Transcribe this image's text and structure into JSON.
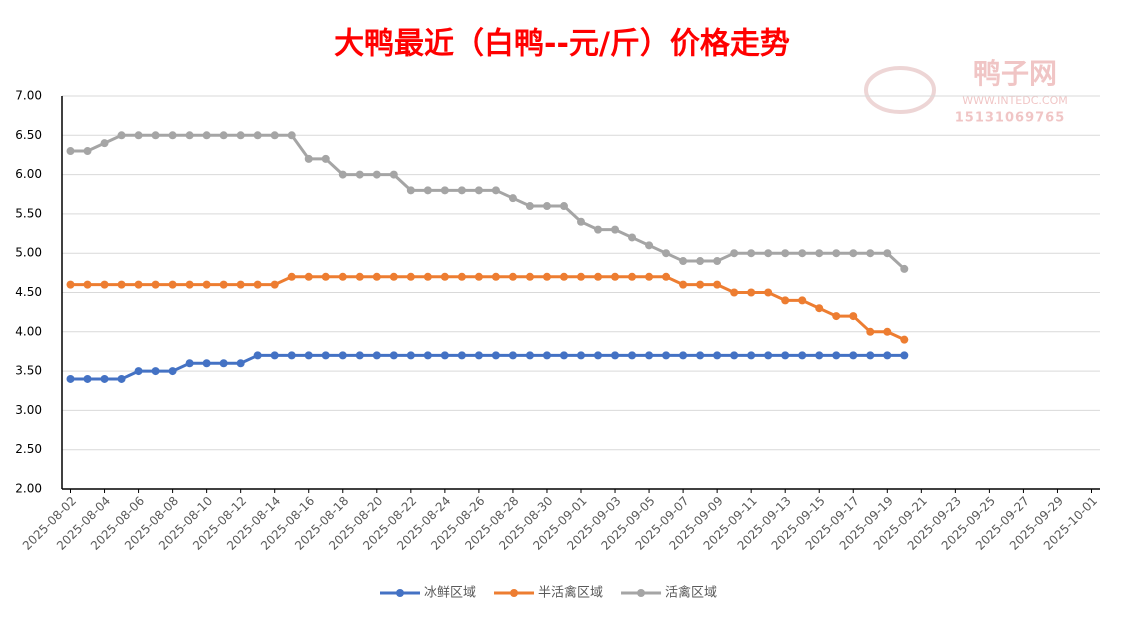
{
  "chart_data": {
    "type": "line",
    "title": "大鸭最近（白鸭--元/斤）价格走势",
    "watermark": {
      "name": "鸭子网",
      "site": "WWW.INTEDC.COM",
      "phone": "15131069765"
    },
    "categories": [
      "2025-08-02",
      null,
      "2025-08-04",
      null,
      "2025-08-06",
      null,
      "2025-08-08",
      null,
      "2025-08-10",
      null,
      "2025-08-12",
      null,
      "2025-08-14",
      null,
      "2025-08-16",
      null,
      "2025-08-18",
      null,
      "2025-08-20",
      null,
      "2025-08-22",
      null,
      "2025-08-24",
      null,
      "2025-08-26",
      null,
      "2025-08-28",
      null,
      "2025-08-30",
      null,
      "2025-09-01",
      null,
      "2025-09-03",
      null,
      "2025-09-05",
      null,
      "2025-09-07",
      null,
      "2025-09-09",
      null,
      "2025-09-11",
      null,
      "2025-09-13",
      null,
      "2025-09-15",
      null,
      "2025-09-17",
      null,
      "2025-09-19",
      null,
      "2025-09-21",
      null,
      "2025-09-23",
      null,
      "2025-09-25",
      null,
      "2025-09-27",
      null,
      "2025-09-29",
      null,
      "2025-10-01"
    ],
    "series": [
      {
        "name": "冰鲜区域",
        "color": "#4472c4",
        "values": [
          3.4,
          3.4,
          3.4,
          3.4,
          3.5,
          3.5,
          3.5,
          3.6,
          3.6,
          3.6,
          3.6,
          3.7,
          3.7,
          3.7,
          3.7,
          3.7,
          3.7,
          3.7,
          3.7,
          3.7,
          3.7,
          3.7,
          3.7,
          3.7,
          3.7,
          3.7,
          3.7,
          3.7,
          3.7,
          3.7,
          3.7,
          3.7,
          3.7,
          3.7,
          3.7,
          3.7,
          3.7,
          3.7,
          3.7,
          3.7,
          3.7,
          3.7,
          3.7,
          3.7,
          3.7,
          3.7,
          3.7,
          3.7,
          3.7,
          3.7,
          null,
          null,
          null,
          null,
          null,
          null,
          null,
          null,
          null,
          null,
          null
        ]
      },
      {
        "name": "半活禽区域",
        "color": "#ed7d31",
        "values": [
          4.6,
          4.6,
          4.6,
          4.6,
          4.6,
          4.6,
          4.6,
          4.6,
          4.6,
          4.6,
          4.6,
          4.6,
          4.6,
          4.7,
          4.7,
          4.7,
          4.7,
          4.7,
          4.7,
          4.7,
          4.7,
          4.7,
          4.7,
          4.7,
          4.7,
          4.7,
          4.7,
          4.7,
          4.7,
          4.7,
          4.7,
          4.7,
          4.7,
          4.7,
          4.7,
          4.7,
          4.6,
          4.6,
          4.6,
          4.5,
          4.5,
          4.5,
          4.4,
          4.4,
          4.3,
          4.2,
          4.2,
          4.0,
          4.0,
          3.9,
          null,
          null,
          null,
          null,
          null,
          null,
          null,
          null,
          null,
          null,
          null
        ]
      },
      {
        "name": "活禽区域",
        "color": "#a5a5a5",
        "values": [
          6.3,
          6.3,
          6.4,
          6.5,
          6.5,
          6.5,
          6.5,
          6.5,
          6.5,
          6.5,
          6.5,
          6.5,
          6.5,
          6.5,
          6.2,
          6.2,
          6.0,
          6.0,
          6.0,
          6.0,
          5.8,
          5.8,
          5.8,
          5.8,
          5.8,
          5.8,
          5.7,
          5.6,
          5.6,
          5.6,
          5.4,
          5.3,
          5.3,
          5.2,
          5.1,
          5.0,
          4.9,
          4.9,
          4.9,
          5.0,
          5.0,
          5.0,
          5.0,
          5.0,
          5.0,
          5.0,
          5.0,
          5.0,
          5.0,
          4.8,
          null,
          null,
          null,
          null,
          null,
          null,
          null,
          null,
          null,
          null,
          null
        ]
      }
    ],
    "ylim": [
      2,
      7
    ],
    "yticks": [
      {
        "value": 2,
        "label": "2.00"
      },
      {
        "value": 2.5,
        "label": "2.50"
      },
      {
        "value": 3,
        "label": "3.00"
      },
      {
        "value": 3.5,
        "label": "3.50"
      },
      {
        "value": 4,
        "label": "4.00"
      },
      {
        "value": 4.5,
        "label": "4.50"
      },
      {
        "value": 5,
        "label": "5.00"
      },
      {
        "value": 5.5,
        "label": "5.50"
      },
      {
        "value": 6,
        "label": "6.00"
      },
      {
        "value": 6.5,
        "label": "6.50"
      },
      {
        "value": 7,
        "label": "7.00"
      }
    ],
    "grid": true,
    "legend": "bottom"
  }
}
